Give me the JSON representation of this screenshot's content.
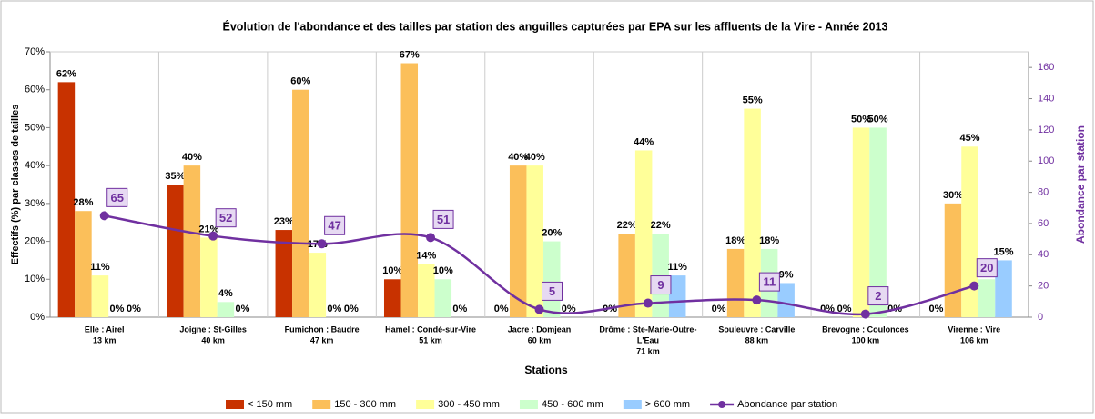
{
  "chart_data": {
    "type": "bar",
    "title": "Évolution de l'abondance  et des tailles par station des anguilles capturées par EPA sur les affluents de la Vire - Année 2013",
    "xlabel": "Stations",
    "ylabel": "Effectifs (%) par classes de tailles",
    "y2label": "Abondance par station",
    "categories": [
      [
        "Elle : Airel",
        "13 km"
      ],
      [
        "Joigne : St-Gilles",
        "40 km"
      ],
      [
        "Fumichon : Baudre",
        "47 km"
      ],
      [
        "Hamel : Condé-sur-Vire",
        "51 km"
      ],
      [
        "Jacre : Domjean",
        "60 km"
      ],
      [
        "Drôme : Ste-Marie-Outre-",
        "L'Eau",
        "71 km"
      ],
      [
        "Souleuvre : Carville",
        "88 km"
      ],
      [
        "Brevogne : Coulonces",
        "100 km"
      ],
      [
        "Virenne : Vire",
        "106 km"
      ]
    ],
    "series": [
      {
        "name": "< 150 mm",
        "color": "#c83200",
        "values": [
          62,
          35,
          23,
          10,
          0,
          0,
          0,
          0,
          0
        ],
        "value_labels": [
          "62%",
          "35%",
          "23%",
          "10%",
          "0%",
          "0%",
          "0%",
          "0%",
          "0%"
        ]
      },
      {
        "name": "150 - 300 mm",
        "color": "#fbbf5a",
        "values": [
          28,
          40,
          60,
          67,
          40,
          22,
          18,
          0,
          30
        ],
        "value_labels": [
          "28%",
          "40%",
          "60%",
          "67%",
          "40%",
          "22%",
          "18%",
          "0%",
          "30%"
        ]
      },
      {
        "name": "300 - 450 mm",
        "color": "#ffff99",
        "values": [
          11,
          21,
          17,
          14,
          40,
          44,
          55,
          50,
          45
        ],
        "value_labels": [
          "11%",
          "21%",
          "17%",
          "14%",
          "40%",
          "44%",
          "55%",
          "50%",
          "45%"
        ]
      },
      {
        "name": "450 - 600 mm",
        "color": "#ccffcc",
        "values": [
          0,
          4,
          0,
          10,
          20,
          22,
          18,
          50,
          10
        ],
        "value_labels": [
          "0%",
          "4%",
          "0%",
          "10%",
          "20%",
          "22%",
          "18%",
          "50%",
          "10%"
        ]
      },
      {
        "name": "> 600 mm",
        "color": "#99ccff",
        "values": [
          0,
          0,
          0,
          0,
          0,
          11,
          9,
          0,
          15
        ],
        "value_labels": [
          "0%",
          "0%",
          "0%",
          "0%",
          "0%",
          "11%",
          "9%",
          "0%",
          "15%"
        ]
      },
      {
        "name": "Abondance par station",
        "type": "line",
        "axis": "y2",
        "color": "#7030a0",
        "values": [
          65,
          52,
          47,
          51,
          5,
          9,
          11,
          2,
          20
        ]
      }
    ],
    "ylim": [
      0,
      70
    ],
    "yticks": [
      {
        "value": 0,
        "label": "0%"
      },
      {
        "value": 10,
        "label": "10%"
      },
      {
        "value": 20,
        "label": "20%"
      },
      {
        "value": 30,
        "label": "30%"
      },
      {
        "value": 40,
        "label": "40%"
      },
      {
        "value": 50,
        "label": "50%"
      },
      {
        "value": 60,
        "label": "60%"
      },
      {
        "value": 70,
        "label": "70%"
      }
    ],
    "y2lim": [
      0,
      170
    ],
    "y2ticks": [
      0,
      20,
      40,
      60,
      80,
      100,
      120,
      140,
      160
    ],
    "grid": "x",
    "legend": "bottom"
  }
}
